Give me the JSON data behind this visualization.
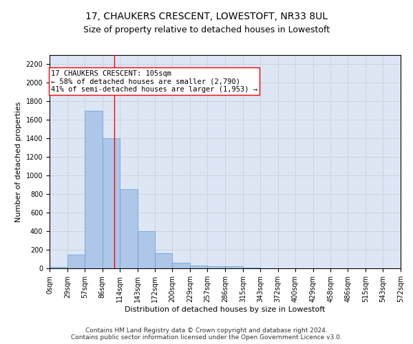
{
  "title": "17, CHAUKERS CRESCENT, LOWESTOFT, NR33 8UL",
  "subtitle": "Size of property relative to detached houses in Lowestoft",
  "xlabel": "Distribution of detached houses by size in Lowestoft",
  "ylabel": "Number of detached properties",
  "footer_line1": "Contains HM Land Registry data © Crown copyright and database right 2024.",
  "footer_line2": "Contains public sector information licensed under the Open Government Licence v3.0.",
  "bin_edges": [
    0,
    29,
    57,
    86,
    114,
    143,
    172,
    200,
    229,
    257,
    286,
    315,
    343,
    372,
    400,
    429,
    458,
    486,
    515,
    543,
    572
  ],
  "bin_labels": [
    "0sqm",
    "29sqm",
    "57sqm",
    "86sqm",
    "114sqm",
    "143sqm",
    "172sqm",
    "200sqm",
    "229sqm",
    "257sqm",
    "286sqm",
    "315sqm",
    "343sqm",
    "372sqm",
    "400sqm",
    "429sqm",
    "458sqm",
    "486sqm",
    "515sqm",
    "543sqm",
    "572sqm"
  ],
  "bar_heights": [
    15,
    150,
    1700,
    1400,
    850,
    400,
    165,
    60,
    30,
    25,
    25,
    5,
    0,
    0,
    0,
    0,
    0,
    0,
    0,
    0
  ],
  "bar_color": "#aec6e8",
  "bar_edgecolor": "#5a9fd4",
  "property_line_x": 105,
  "property_line_color": "red",
  "annotation_line1": "17 CHAUKERS CRESCENT: 105sqm",
  "annotation_line2": "← 58% of detached houses are smaller (2,790)",
  "annotation_line3": "41% of semi-detached houses are larger (1,953) →",
  "annotation_box_color": "white",
  "annotation_border_color": "red",
  "ylim": [
    0,
    2300
  ],
  "yticks": [
    0,
    200,
    400,
    600,
    800,
    1000,
    1200,
    1400,
    1600,
    1800,
    2000,
    2200
  ],
  "grid_color": "#cccccc",
  "background_color": "#dce6f5",
  "title_fontsize": 10,
  "subtitle_fontsize": 9,
  "ylabel_fontsize": 8,
  "xlabel_fontsize": 8,
  "tick_fontsize": 7,
  "footer_fontsize": 6.5,
  "annotation_fontsize": 7.5
}
